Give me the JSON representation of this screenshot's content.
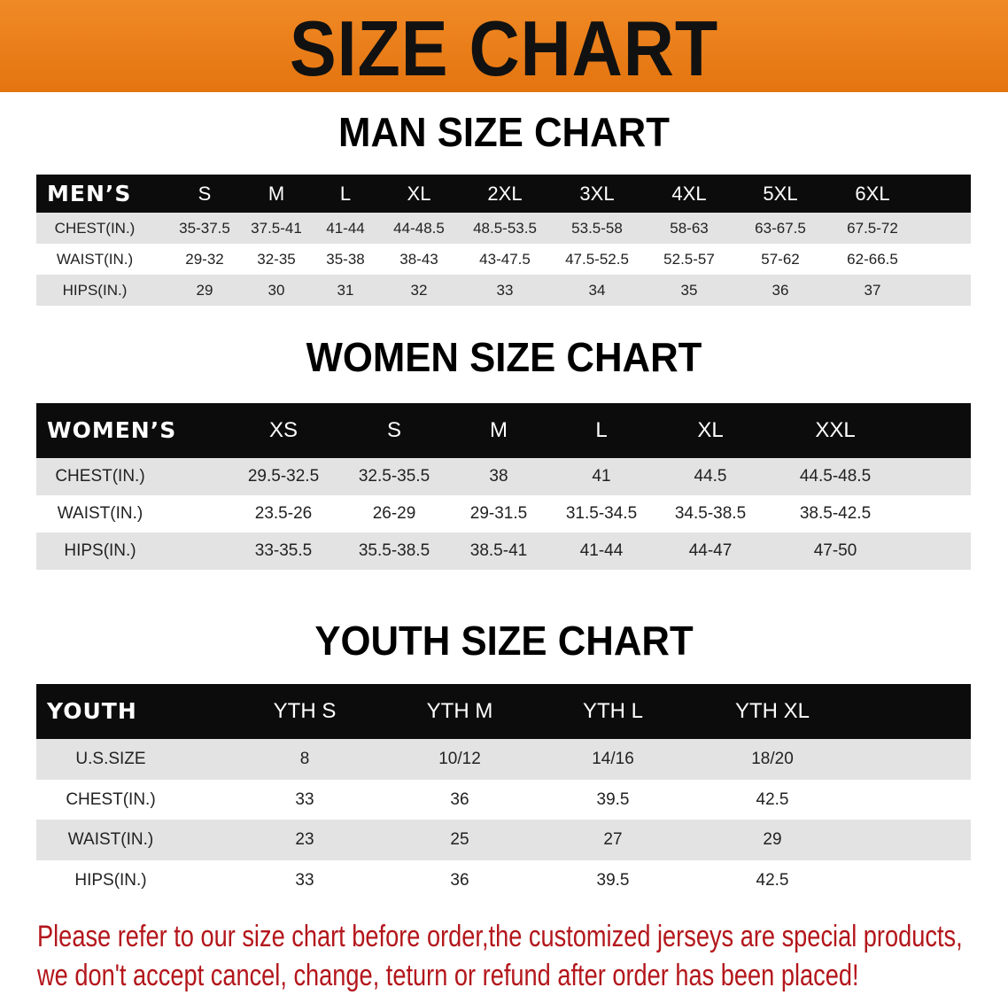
{
  "banner": {
    "title": "SIZE CHART",
    "color": "#e97d1b"
  },
  "men": {
    "title": "MAN SIZE CHART",
    "header_label": "MEN’S",
    "sizes": [
      "S",
      "M",
      "L",
      "XL",
      "2XL",
      "3XL",
      "4XL",
      "5XL",
      "6XL"
    ],
    "rows": [
      {
        "label": "CHEST(IN.)",
        "values": [
          "35-37.5",
          "37.5-41",
          "41-44",
          "44-48.5",
          "48.5-53.5",
          "53.5-58",
          "58-63",
          "63-67.5",
          "67.5-72"
        ]
      },
      {
        "label": "WAIST(IN.)",
        "values": [
          "29-32",
          "32-35",
          "35-38",
          "38-43",
          "43-47.5",
          "47.5-52.5",
          "52.5-57",
          "57-62",
          "62-66.5"
        ]
      },
      {
        "label": "HIPS(IN.)",
        "values": [
          "29",
          "30",
          "31",
          "32",
          "33",
          "34",
          "35",
          "36",
          "37"
        ]
      }
    ]
  },
  "women": {
    "title": "WOMEN SIZE CHART",
    "header_label": "WOMEN’S",
    "sizes": [
      "XS",
      "S",
      "M",
      "L",
      "XL",
      "XXL"
    ],
    "rows": [
      {
        "label": "CHEST(IN.)",
        "values": [
          "29.5-32.5",
          "32.5-35.5",
          "38",
          "41",
          "44.5",
          "44.5-48.5"
        ]
      },
      {
        "label": "WAIST(IN.)",
        "values": [
          "23.5-26",
          "26-29",
          "29-31.5",
          "31.5-34.5",
          "34.5-38.5",
          "38.5-42.5"
        ]
      },
      {
        "label": "HIPS(IN.)",
        "values": [
          "33-35.5",
          "35.5-38.5",
          "38.5-41",
          "41-44",
          "44-47",
          "47-50"
        ]
      }
    ]
  },
  "youth": {
    "title": "YOUTH SIZE CHART",
    "header_label": "YOUTH",
    "sizes": [
      "YTH S",
      "YTH M",
      "YTH L",
      "YTH XL"
    ],
    "rows": [
      {
        "label": "U.S.SIZE",
        "values": [
          "8",
          "10/12",
          "14/16",
          "18/20"
        ]
      },
      {
        "label": "CHEST(IN.)",
        "values": [
          "33",
          "36",
          "39.5",
          "42.5"
        ]
      },
      {
        "label": "WAIST(IN.)",
        "values": [
          "23",
          "25",
          "27",
          "29"
        ]
      },
      {
        "label": "HIPS(IN.)",
        "values": [
          "33",
          "36",
          "39.5",
          "42.5"
        ]
      }
    ]
  },
  "note": {
    "line1": "Please refer to our size chart before order,the customized jerseys are special products,",
    "line2": "we don't accept cancel, change, teturn or refund after order has been placed!",
    "color": "#b3161b"
  }
}
